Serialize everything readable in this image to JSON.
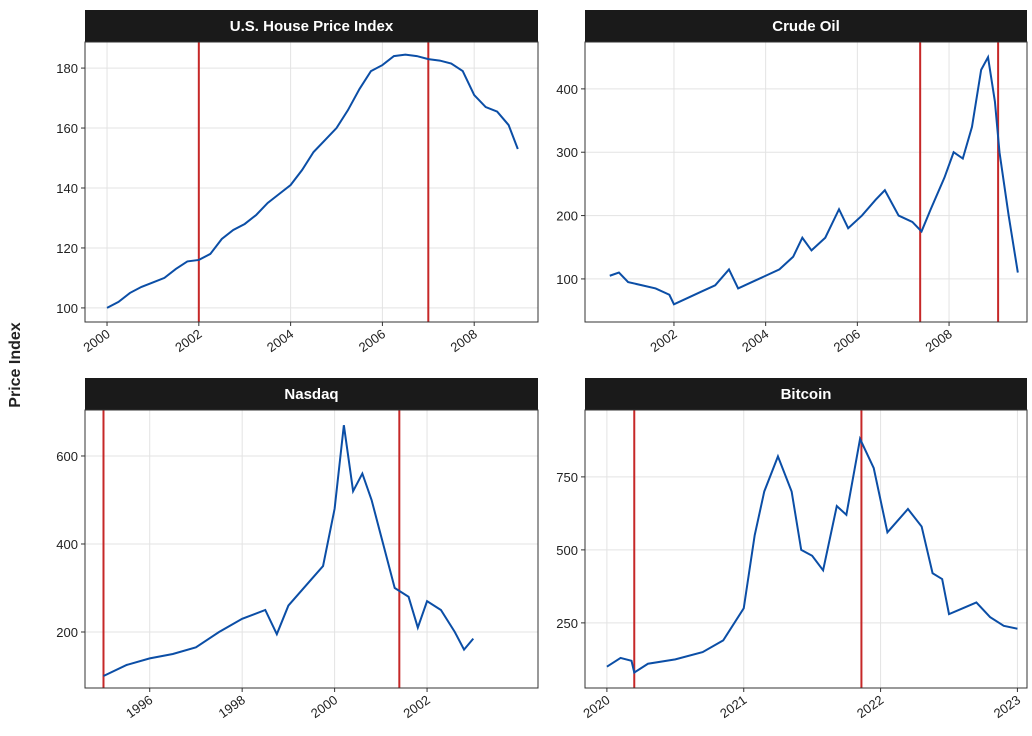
{
  "ylabel": "Price Index",
  "chart_data": [
    {
      "type": "line",
      "title": "U.S. House Price Index",
      "color": "#0b4ea6",
      "vline_color": "#c62828",
      "grid": true,
      "x": [
        2000,
        2000.25,
        2000.5,
        2000.75,
        2001,
        2001.25,
        2001.5,
        2001.75,
        2002,
        2002.25,
        2002.5,
        2002.75,
        2003,
        2003.25,
        2003.5,
        2003.75,
        2004,
        2004.25,
        2004.5,
        2004.75,
        2005,
        2005.25,
        2005.5,
        2005.75,
        2006,
        2006.25,
        2006.5,
        2006.75,
        2007,
        2007.25,
        2007.5,
        2007.75,
        2008,
        2008.25,
        2008.5,
        2008.75,
        2008.95
      ],
      "values": [
        100,
        102,
        105,
        107,
        108.5,
        110,
        113,
        115.5,
        116,
        118,
        123,
        126,
        128,
        131,
        135,
        138,
        141,
        146,
        152,
        156,
        160,
        166,
        173,
        179,
        181,
        184,
        184.5,
        184,
        183,
        182.5,
        181.5,
        179,
        171,
        167,
        165.5,
        161,
        153
      ],
      "vlines": [
        2002,
        2007
      ],
      "xlim": [
        1999.52,
        2009.39
      ],
      "ylim": [
        95.3,
        188.7
      ],
      "xticks": [
        2000,
        2002,
        2004,
        2006,
        2008
      ],
      "yticks": [
        100,
        120,
        140,
        160,
        180
      ]
    },
    {
      "type": "line",
      "title": "Crude Oil",
      "color": "#0b4ea6",
      "vline_color": "#c62828",
      "grid": true,
      "x": [
        2000.6,
        2000.8,
        2001,
        2001.3,
        2001.6,
        2001.9,
        2002,
        2002.3,
        2002.6,
        2002.9,
        2003.2,
        2003.4,
        2003.7,
        2004,
        2004.3,
        2004.6,
        2004.8,
        2005,
        2005.3,
        2005.6,
        2005.8,
        2006.1,
        2006.4,
        2006.6,
        2006.9,
        2007.2,
        2007.4,
        2007.6,
        2007.9,
        2008.1,
        2008.3,
        2008.5,
        2008.7,
        2008.85,
        2009,
        2009.1,
        2009.3,
        2009.5
      ],
      "values": [
        105,
        110,
        95,
        90,
        85,
        75,
        60,
        70,
        80,
        90,
        115,
        85,
        95,
        105,
        115,
        135,
        165,
        145,
        165,
        210,
        180,
        200,
        225,
        240,
        200,
        190,
        175,
        210,
        260,
        300,
        290,
        340,
        430,
        450,
        380,
        300,
        200,
        110
      ],
      "vlines": [
        2007.37,
        2009.07
      ],
      "xlim": [
        2000.06,
        2009.7
      ],
      "ylim": [
        32,
        474
      ],
      "xticks": [
        2002,
        2004,
        2006,
        2008
      ],
      "yticks": [
        100,
        200,
        300,
        400
      ]
    },
    {
      "type": "line",
      "title": "Nasdaq",
      "color": "#0b4ea6",
      "vline_color": "#c62828",
      "grid": true,
      "x": [
        1995,
        1995.5,
        1996,
        1996.5,
        1997,
        1997.5,
        1998,
        1998.5,
        1998.75,
        1999,
        1999.5,
        1999.75,
        2000,
        2000.2,
        2000.4,
        2000.6,
        2000.8,
        2001,
        2001.3,
        2001.6,
        2001.8,
        2002,
        2002.3,
        2002.6,
        2002.8,
        2003
      ],
      "values": [
        100,
        125,
        140,
        150,
        165,
        200,
        230,
        250,
        195,
        260,
        320,
        350,
        480,
        670,
        520,
        560,
        500,
        420,
        300,
        280,
        210,
        270,
        250,
        200,
        160,
        185
      ],
      "vlines": [
        1995.0,
        2001.4
      ],
      "xlim": [
        1994.6,
        2004.4
      ],
      "ylim": [
        72.7,
        704.5
      ],
      "xticks": [
        1996,
        1998,
        2000,
        2002
      ],
      "yticks": [
        200,
        400,
        600
      ]
    },
    {
      "type": "line",
      "title": "Bitcoin",
      "color": "#0b4ea6",
      "vline_color": "#c62828",
      "grid": true,
      "x": [
        2020,
        2020.1,
        2020.18,
        2020.2,
        2020.3,
        2020.5,
        2020.7,
        2020.85,
        2021,
        2021.08,
        2021.15,
        2021.25,
        2021.35,
        2021.42,
        2021.5,
        2021.58,
        2021.68,
        2021.75,
        2021.85,
        2021.95,
        2022.05,
        2022.2,
        2022.3,
        2022.38,
        2022.45,
        2022.5,
        2022.6,
        2022.7,
        2022.8,
        2022.9,
        2023
      ],
      "values": [
        100,
        130,
        120,
        80,
        110,
        125,
        150,
        190,
        300,
        550,
        700,
        820,
        700,
        500,
        480,
        430,
        650,
        620,
        880,
        780,
        560,
        640,
        580,
        420,
        400,
        280,
        300,
        320,
        270,
        240,
        230
      ],
      "vlines": [
        2020.2,
        2021.86
      ],
      "xlim": [
        2019.84,
        2023.07
      ],
      "ylim": [
        27,
        979
      ],
      "xticks": [
        2020,
        2021,
        2022,
        2023
      ],
      "yticks": [
        250,
        500,
        750
      ]
    }
  ]
}
